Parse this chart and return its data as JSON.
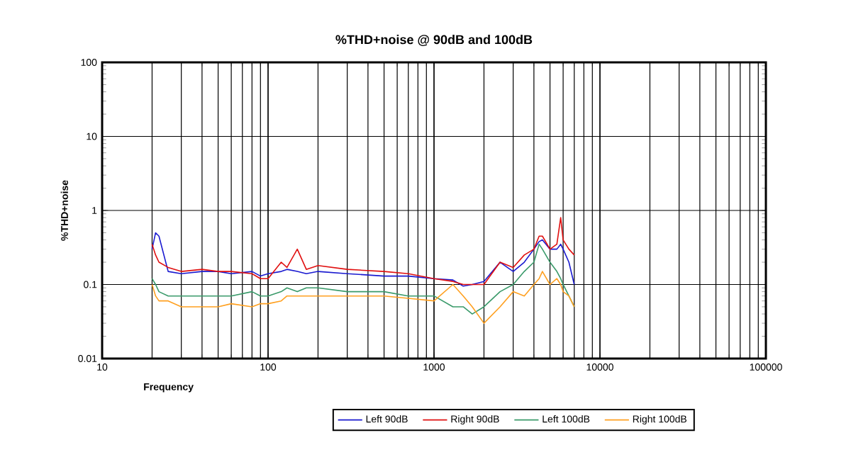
{
  "chart_data": {
    "type": "line",
    "title": "%THD+noise @ 90dB and 100dB",
    "xlabel": "Frequency",
    "ylabel": "%THD+noise",
    "x": [
      20,
      21,
      22,
      25,
      30,
      40,
      50,
      60,
      80,
      90,
      100,
      120,
      130,
      150,
      170,
      200,
      300,
      500,
      700,
      1000,
      1300,
      1500,
      1700,
      2000,
      2500,
      3000,
      3500,
      4000,
      4300,
      4500,
      5000,
      5500,
      5800,
      6000,
      6500,
      7000
    ],
    "series": [
      {
        "name": "Left 90dB",
        "color": "#1a1ad0",
        "values": [
          0.3,
          0.5,
          0.45,
          0.15,
          0.14,
          0.15,
          0.15,
          0.14,
          0.15,
          0.13,
          0.14,
          0.15,
          0.16,
          0.15,
          0.14,
          0.15,
          0.14,
          0.13,
          0.13,
          0.12,
          0.115,
          0.095,
          0.1,
          0.11,
          0.2,
          0.15,
          0.2,
          0.3,
          0.38,
          0.4,
          0.3,
          0.3,
          0.35,
          0.3,
          0.2,
          0.1
        ]
      },
      {
        "name": "Right 90dB",
        "color": "#e01010",
        "values": [
          0.35,
          0.25,
          0.2,
          0.17,
          0.15,
          0.16,
          0.15,
          0.15,
          0.14,
          0.12,
          0.12,
          0.2,
          0.17,
          0.3,
          0.16,
          0.18,
          0.16,
          0.15,
          0.14,
          0.12,
          0.11,
          0.1,
          0.1,
          0.1,
          0.2,
          0.17,
          0.25,
          0.3,
          0.45,
          0.45,
          0.3,
          0.35,
          0.8,
          0.4,
          0.3,
          0.25
        ]
      },
      {
        "name": "Left 100dB",
        "color": "#3a9a6a",
        "values": [
          0.12,
          0.1,
          0.08,
          0.07,
          0.07,
          0.07,
          0.07,
          0.07,
          0.08,
          0.07,
          0.07,
          0.08,
          0.09,
          0.08,
          0.09,
          0.09,
          0.08,
          0.08,
          0.07,
          0.07,
          0.05,
          0.05,
          0.04,
          0.05,
          0.08,
          0.1,
          0.15,
          0.2,
          0.35,
          0.3,
          0.2,
          0.15,
          0.12,
          0.1,
          0.07,
          0.05
        ]
      },
      {
        "name": "Right 100dB",
        "color": "#ffa020",
        "values": [
          0.1,
          0.07,
          0.06,
          0.06,
          0.05,
          0.05,
          0.05,
          0.055,
          0.05,
          0.055,
          0.055,
          0.06,
          0.07,
          0.07,
          0.07,
          0.07,
          0.07,
          0.07,
          0.065,
          0.06,
          0.1,
          0.07,
          0.05,
          0.03,
          0.05,
          0.08,
          0.07,
          0.1,
          0.12,
          0.15,
          0.1,
          0.12,
          0.1,
          0.08,
          0.07,
          0.05
        ]
      }
    ],
    "xlim": [
      10,
      100000
    ],
    "ylim": [
      0.01,
      100
    ],
    "xticks": [
      10,
      100,
      1000,
      10000,
      100000
    ],
    "yticks": [
      0.01,
      0.1,
      1,
      10,
      100
    ],
    "log": "xy",
    "grid": true,
    "legend": "bottom"
  }
}
